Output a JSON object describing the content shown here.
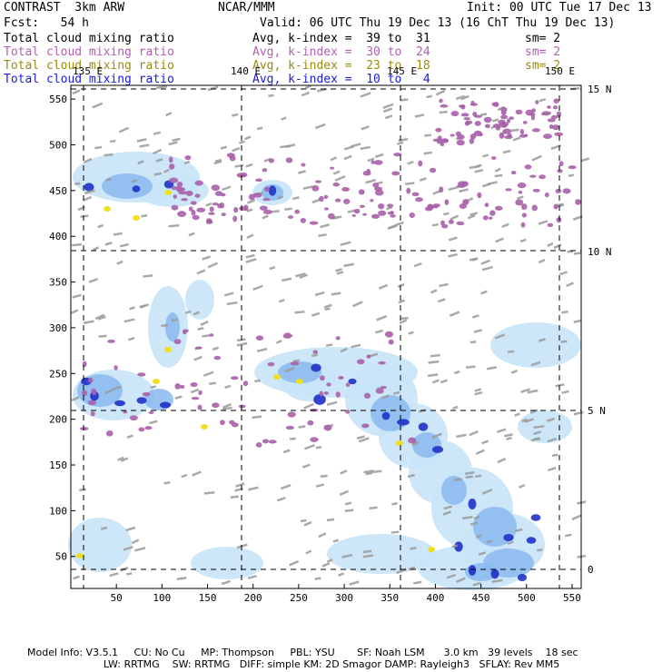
{
  "header": {
    "product": "CONTRAST  3km ARW",
    "center": "NCAR/MMM",
    "init": "Init: 00 UTC Tue 17 Dec 13",
    "fcst": "Fcst:   54 h",
    "valid": "Valid: 06 UTC Thu 19 Dec 13 (16 ChT Thu 19 Dec 13)"
  },
  "fields": [
    {
      "name": "Total cloud mixing ratio",
      "stat": "Avg, k-index =  39 to  31",
      "sm": "sm= 2",
      "color": "#000000"
    },
    {
      "name": "Total cloud mixing ratio",
      "stat": "Avg, k-index =  30 to  24",
      "sm": "sm= 2",
      "color": "#b060b0"
    },
    {
      "name": "Total cloud mixing ratio",
      "stat": "Avg, k-index =  23 to  18",
      "sm": "sm= 2",
      "color": "#9a8a10"
    },
    {
      "name": "Total cloud mixing ratio",
      "stat": "Avg, k-index =  10 to   4",
      "sm": "",
      "color": "#1a1ae0"
    }
  ],
  "map": {
    "x_ticks": [
      "50",
      "100",
      "150",
      "200",
      "250",
      "300",
      "350",
      "400",
      "450",
      "500",
      "550"
    ],
    "y_ticks": [
      "50",
      "100",
      "150",
      "200",
      "250",
      "300",
      "350",
      "400",
      "450",
      "500",
      "550"
    ],
    "lon_labels": [
      "135 E",
      "140 E",
      "145 E",
      "150 E"
    ],
    "lat_labels": [
      "15 N",
      "10 N",
      "5 N",
      "0"
    ],
    "grid_x_range": [
      0,
      560
    ],
    "grid_y_range": [
      15,
      565
    ]
  },
  "footer": {
    "line1": "Model Info: V3.5.1     CU: No Cu     MP: Thompson     PBL: YSU       SF: Noah LSM      3.0 km   39 levels    18 sec",
    "line2": "                        LW: RRTMG    SW: RRTMG   DIFF: simple KM: 2D Smagor DAMP: Rayleigh3   SFLAY: Rev MM5"
  },
  "colors": {
    "gray": "#9a9a9a",
    "magenta": "#a860a8",
    "yellow": "#f0e020",
    "light_blue": "#c8e4f8",
    "mid_blue": "#8ab8f0",
    "dark_blue": "#2030c8"
  }
}
